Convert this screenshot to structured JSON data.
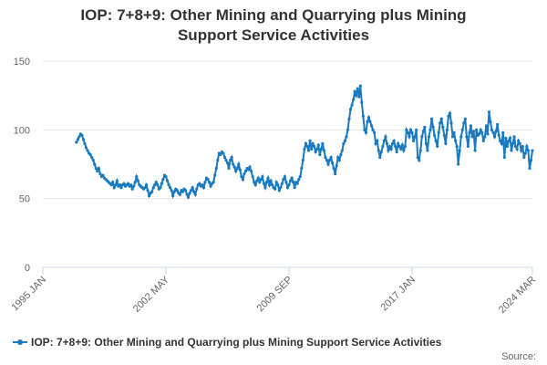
{
  "chart_data": {
    "type": "line",
    "title": "IOP: 7+8+9: Other Mining and Quarrying plus Mining Support Service Activities",
    "source": "Source:",
    "x": [
      "1995 JAN",
      "1995 FEB",
      "1995 MAR",
      "1995 APR",
      "1995 MAY",
      "1995 JUN",
      "1995 JUL",
      "1995 AUG",
      "1995 SEP",
      "1995 OCT",
      "1995 NOV",
      "1995 DEC",
      "1996 JAN",
      "1996 FEB",
      "1996 MAR",
      "1996 APR",
      "1996 MAY",
      "1996 JUN",
      "1996 JUL",
      "1996 AUG",
      "1996 SEP",
      "1996 OCT",
      "1996 NOV",
      "1996 DEC",
      "1997 JAN",
      "1997 FEB",
      "1997 MAR",
      "1997 APR",
      "1997 MAY",
      "1997 JUN",
      "1997 JUL",
      "1997 AUG",
      "1997 SEP",
      "1997 OCT",
      "1997 NOV",
      "1997 DEC",
      "1998 JAN",
      "1998 FEB",
      "1998 MAR",
      "1998 APR",
      "1998 MAY",
      "1998 JUN",
      "1998 JUL",
      "1998 AUG",
      "1998 SEP",
      "1998 OCT",
      "1998 NOV",
      "1998 DEC",
      "1999 JAN",
      "1999 FEB",
      "1999 MAR",
      "1999 APR",
      "1999 MAY",
      "1999 JUN",
      "1999 JUL",
      "1999 AUG",
      "1999 SEP",
      "1999 OCT",
      "1999 NOV",
      "1999 DEC",
      "2000 JAN",
      "2000 FEB",
      "2000 MAR",
      "2000 APR",
      "2000 MAY",
      "2000 JUN",
      "2000 JUL",
      "2000 AUG",
      "2000 SEP",
      "2000 OCT",
      "2000 NOV",
      "2000 DEC",
      "2001 JAN",
      "2001 FEB",
      "2001 MAR",
      "2001 APR",
      "2001 MAY",
      "2001 JUN",
      "2001 JUL",
      "2001 AUG",
      "2001 SEP",
      "2001 OCT",
      "2001 NOV",
      "2001 DEC",
      "2002 JAN",
      "2002 FEB",
      "2002 MAR",
      "2002 APR",
      "2002 MAY",
      "2002 JUN",
      "2002 JUL",
      "2002 AUG",
      "2002 SEP",
      "2002 OCT",
      "2002 NOV",
      "2002 DEC",
      "2003 JAN",
      "2003 FEB",
      "2003 MAR",
      "2003 APR",
      "2003 MAY",
      "2003 JUN",
      "2003 JUL",
      "2003 AUG",
      "2003 SEP",
      "2003 OCT",
      "2003 NOV",
      "2003 DEC",
      "2004 JAN",
      "2004 FEB",
      "2004 MAR",
      "2004 APR",
      "2004 MAY",
      "2004 JUN",
      "2004 JUL",
      "2004 AUG",
      "2004 SEP",
      "2004 OCT",
      "2004 NOV",
      "2004 DEC",
      "2005 JAN",
      "2005 FEB",
      "2005 MAR",
      "2005 APR",
      "2005 MAY",
      "2005 JUN",
      "2005 JUL",
      "2005 AUG",
      "2005 SEP",
      "2005 OCT",
      "2005 NOV",
      "2005 DEC",
      "2006 JAN",
      "2006 FEB",
      "2006 MAR",
      "2006 APR",
      "2006 MAY",
      "2006 JUN",
      "2006 JUL",
      "2006 AUG",
      "2006 SEP",
      "2006 OCT",
      "2006 NOV",
      "2006 DEC",
      "2007 JAN",
      "2007 FEB",
      "2007 MAR",
      "2007 APR",
      "2007 MAY",
      "2007 JUN",
      "2007 JUL",
      "2007 AUG",
      "2007 SEP",
      "2007 OCT",
      "2007 NOV",
      "2007 DEC",
      "2008 JAN",
      "2008 FEB",
      "2008 MAR",
      "2008 APR",
      "2008 MAY",
      "2008 JUN",
      "2008 JUL",
      "2008 AUG",
      "2008 SEP",
      "2008 OCT",
      "2008 NOV",
      "2008 DEC",
      "2009 JAN",
      "2009 FEB",
      "2009 MAR",
      "2009 APR",
      "2009 MAY",
      "2009 JUN",
      "2009 JUL",
      "2009 AUG",
      "2009 SEP",
      "2009 OCT",
      "2009 NOV",
      "2009 DEC",
      "2010 JAN",
      "2010 FEB",
      "2010 MAR",
      "2010 APR",
      "2010 MAY",
      "2010 JUN",
      "2010 JUL",
      "2010 AUG",
      "2010 SEP",
      "2010 OCT",
      "2010 NOV",
      "2010 DEC",
      "2011 JAN",
      "2011 FEB",
      "2011 MAR",
      "2011 APR",
      "2011 MAY",
      "2011 JUN",
      "2011 JUL",
      "2011 AUG",
      "2011 SEP",
      "2011 OCT",
      "2011 NOV",
      "2011 DEC",
      "2012 JAN",
      "2012 FEB",
      "2012 MAR",
      "2012 APR",
      "2012 MAY",
      "2012 JUN",
      "2012 JUL",
      "2012 AUG",
      "2012 SEP",
      "2012 OCT",
      "2012 NOV",
      "2012 DEC",
      "2013 JAN",
      "2013 FEB",
      "2013 MAR",
      "2013 APR",
      "2013 MAY",
      "2013 JUN",
      "2013 JUL",
      "2013 AUG",
      "2013 SEP",
      "2013 OCT",
      "2013 NOV",
      "2013 DEC",
      "2014 JAN",
      "2014 FEB",
      "2014 MAR",
      "2014 APR",
      "2014 MAY",
      "2014 JUN",
      "2014 JUL",
      "2014 AUG",
      "2014 SEP",
      "2014 OCT",
      "2014 NOV",
      "2014 DEC",
      "2015 JAN",
      "2015 FEB",
      "2015 MAR",
      "2015 APR",
      "2015 MAY",
      "2015 JUN",
      "2015 JUL",
      "2015 AUG",
      "2015 SEP",
      "2015 OCT",
      "2015 NOV",
      "2015 DEC",
      "2016 JAN",
      "2016 FEB",
      "2016 MAR",
      "2016 APR",
      "2016 MAY",
      "2016 JUN",
      "2016 JUL",
      "2016 AUG",
      "2016 SEP",
      "2016 OCT",
      "2016 NOV",
      "2016 DEC",
      "2017 JAN",
      "2017 FEB",
      "2017 MAR",
      "2017 APR",
      "2017 MAY",
      "2017 JUN",
      "2017 JUL",
      "2017 AUG",
      "2017 SEP",
      "2017 OCT",
      "2017 NOV",
      "2017 DEC",
      "2018 JAN",
      "2018 FEB",
      "2018 MAR",
      "2018 APR",
      "2018 MAY",
      "2018 JUN",
      "2018 JUL",
      "2018 AUG",
      "2018 SEP",
      "2018 OCT",
      "2018 NOV",
      "2018 DEC",
      "2019 JAN",
      "2019 FEB",
      "2019 MAR",
      "2019 APR",
      "2019 MAY",
      "2019 JUN",
      "2019 JUL",
      "2019 AUG",
      "2019 SEP",
      "2019 OCT",
      "2019 NOV",
      "2019 DEC",
      "2020 JAN",
      "2020 FEB",
      "2020 MAR",
      "2020 APR",
      "2020 MAY",
      "2020 JUN",
      "2020 JUL",
      "2020 AUG",
      "2020 SEP",
      "2020 OCT",
      "2020 NOV",
      "2020 DEC",
      "2021 JAN",
      "2021 FEB",
      "2021 MAR",
      "2021 APR",
      "2021 MAY",
      "2021 JUN",
      "2021 JUL",
      "2021 AUG",
      "2021 SEP",
      "2021 OCT",
      "2021 NOV",
      "2021 DEC",
      "2022 JAN",
      "2022 FEB",
      "2022 MAR",
      "2022 APR",
      "2022 MAY",
      "2022 JUN",
      "2022 JUL",
      "2022 AUG",
      "2022 SEP",
      "2022 OCT",
      "2022 NOV",
      "2022 DEC",
      "2023 JAN",
      "2023 FEB",
      "2023 MAR",
      "2023 APR",
      "2023 MAY",
      "2023 JUN",
      "2023 JUL",
      "2023 AUG",
      "2023 SEP",
      "2023 OCT",
      "2023 NOV",
      "2023 DEC",
      "2024 JAN",
      "2024 FEB",
      "2024 MAR"
    ],
    "series": [
      {
        "name": "IOP: 7+8+9: Other Mining and Quarrying plus Mining Support Service Activities",
        "color": "#1a7abf",
        "values": [
          null,
          null,
          null,
          null,
          null,
          null,
          null,
          null,
          null,
          null,
          null,
          null,
          null,
          null,
          null,
          null,
          null,
          null,
          null,
          null,
          null,
          null,
          null,
          null,
          91,
          93,
          95,
          97,
          96,
          93,
          90,
          87,
          85,
          83,
          82,
          80,
          78,
          75,
          72,
          70,
          72,
          68,
          66,
          67,
          65,
          64,
          63,
          62,
          61,
          60,
          62,
          58,
          60,
          63,
          59,
          60,
          58,
          60,
          61,
          59,
          60,
          61,
          59,
          60,
          57,
          59,
          62,
          66,
          63,
          60,
          59,
          58,
          57,
          58,
          60,
          56,
          52,
          54,
          55,
          58,
          60,
          62,
          60,
          57,
          58,
          61,
          64,
          67,
          66,
          63,
          60,
          58,
          56,
          52,
          55,
          57,
          56,
          54,
          53,
          56,
          55,
          57,
          56,
          53,
          51,
          54,
          56,
          58,
          55,
          53,
          57,
          60,
          61,
          59,
          60,
          58,
          62,
          65,
          64,
          62,
          59,
          61,
          62,
          67,
          72,
          78,
          83,
          82,
          84,
          83,
          80,
          78,
          76,
          72,
          78,
          80,
          75,
          73,
          70,
          72,
          75,
          71,
          66,
          64,
          68,
          70,
          72,
          71,
          73,
          70,
          66,
          62,
          60,
          63,
          65,
          62,
          64,
          66,
          61,
          58,
          62,
          65,
          60,
          63,
          60,
          58,
          57,
          62,
          60,
          56,
          58,
          61,
          64,
          66,
          62,
          58,
          60,
          63,
          65,
          62,
          58,
          62,
          61,
          64,
          66,
          72,
          78,
          86,
          90,
          88,
          85,
          92,
          86,
          90,
          88,
          84,
          86,
          89,
          82,
          86,
          90,
          85,
          80,
          78,
          75,
          78,
          80,
          76,
          72,
          68,
          74,
          80,
          78,
          82,
          85,
          90,
          92,
          95,
          100,
          108,
          115,
          118,
          122,
          128,
          125,
          130,
          124,
          132,
          120,
          110,
          100,
          98,
          106,
          109,
          106,
          103,
          100,
          98,
          90,
          92,
          85,
          80,
          84,
          88,
          92,
          95,
          90,
          85,
          88,
          86,
          90,
          92,
          88,
          84,
          90,
          88,
          86,
          89,
          85,
          88,
          100,
          98,
          95,
          100,
          98,
          92,
          95,
          100,
          80,
          78,
          85,
          95,
          99,
          102,
          90,
          85,
          95,
          100,
          108,
          102,
          96,
          92,
          88,
          98,
          105,
          108,
          102,
          96,
          90,
          100,
          110,
          112,
          105,
          95,
          98,
          92,
          88,
          75,
          85,
          95,
          100,
          105,
          108,
          95,
          88,
          98,
          103,
          95,
          99,
          85,
          100,
          96,
          97,
          100,
          98,
          92,
          95,
          103,
          97,
          113,
          106,
          100,
          98,
          95,
          99,
          104,
          96,
          92,
          90,
          98,
          80,
          94,
          88,
          92,
          94,
          85,
          90,
          95,
          88,
          86,
          92,
          90,
          85,
          88,
          80,
          83,
          88,
          85,
          72,
          78,
          85
        ]
      }
    ],
    "xticks": [
      "1995 JAN",
      "2002 MAY",
      "2009 SEP",
      "2017 JAN",
      "2024 MAR"
    ],
    "ylim": [
      0,
      150
    ],
    "yticks": [
      0,
      50,
      100,
      150
    ],
    "grid": true,
    "legend": "bottom"
  }
}
